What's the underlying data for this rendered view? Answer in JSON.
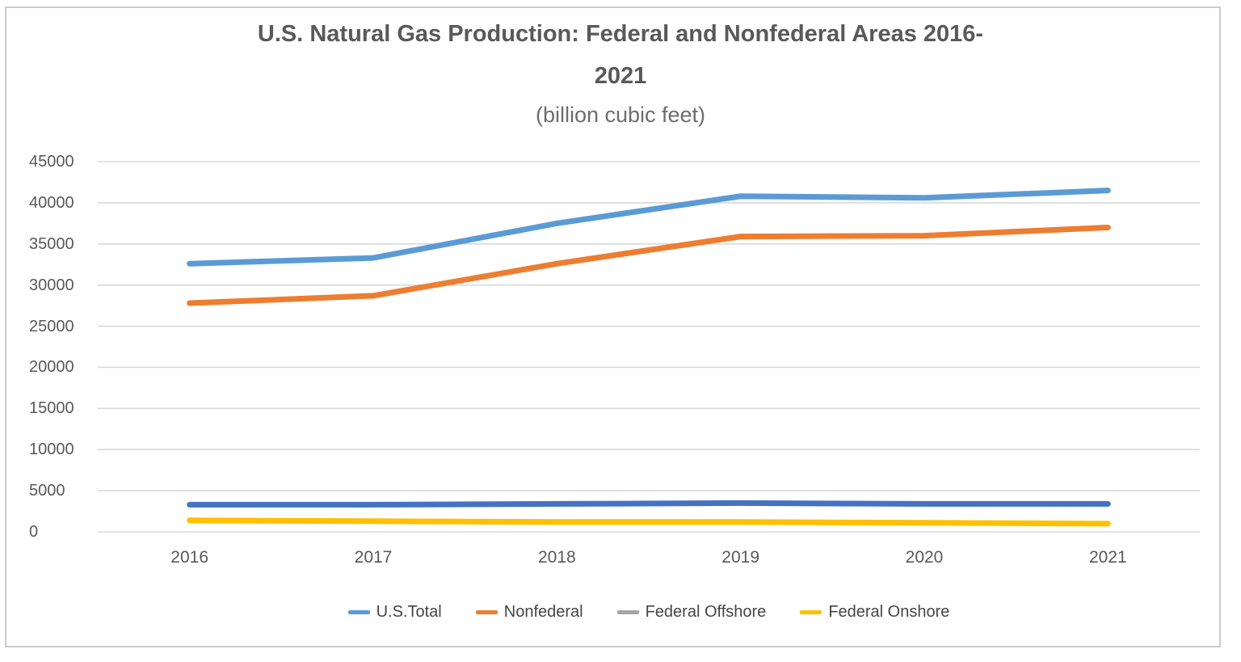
{
  "chart_data": {
    "type": "line",
    "title_line1": "U.S. Natural Gas Production: Federal and Nonfederal Areas 2016-",
    "title_line2": "2021",
    "subtitle": "(billion cubic feet)",
    "categories": [
      "2016",
      "2017",
      "2018",
      "2019",
      "2020",
      "2021"
    ],
    "series": [
      {
        "name": "U.S.Total",
        "line_color": "#5B9BD5",
        "legend_color": "#5B9BD5",
        "values": [
          32600,
          33300,
          37500,
          40800,
          40600,
          41500
        ]
      },
      {
        "name": "Nonfederal",
        "line_color": "#ED7D31",
        "legend_color": "#ED7D31",
        "values": [
          27800,
          28700,
          32600,
          35900,
          36000,
          37000
        ]
      },
      {
        "name": "Federal Offshore",
        "line_color": "#4472C4",
        "legend_color": "#A5A5A5",
        "values": [
          3300,
          3300,
          3400,
          3500,
          3400,
          3400
        ]
      },
      {
        "name": "Federal Onshore",
        "line_color": "#FFC000",
        "legend_color": "#FFC000",
        "values": [
          1400,
          1300,
          1200,
          1200,
          1100,
          1000
        ]
      }
    ],
    "ylim": [
      0,
      45000
    ],
    "y_tick_step": 5000,
    "y_ticks": [
      45000,
      40000,
      35000,
      30000,
      25000,
      20000,
      15000,
      10000,
      5000,
      0
    ],
    "grid": true,
    "legend_position": "bottom"
  },
  "colors": {
    "gridline": "#D9D9D9",
    "axis_line": "#D9D9D9",
    "title_text": "#595959",
    "subtitle_text": "#6D6D6D",
    "axis_text": "#595959",
    "legend_text": "#454545",
    "canvas_border": "#CCCCCC",
    "background": "#FFFFFF"
  }
}
